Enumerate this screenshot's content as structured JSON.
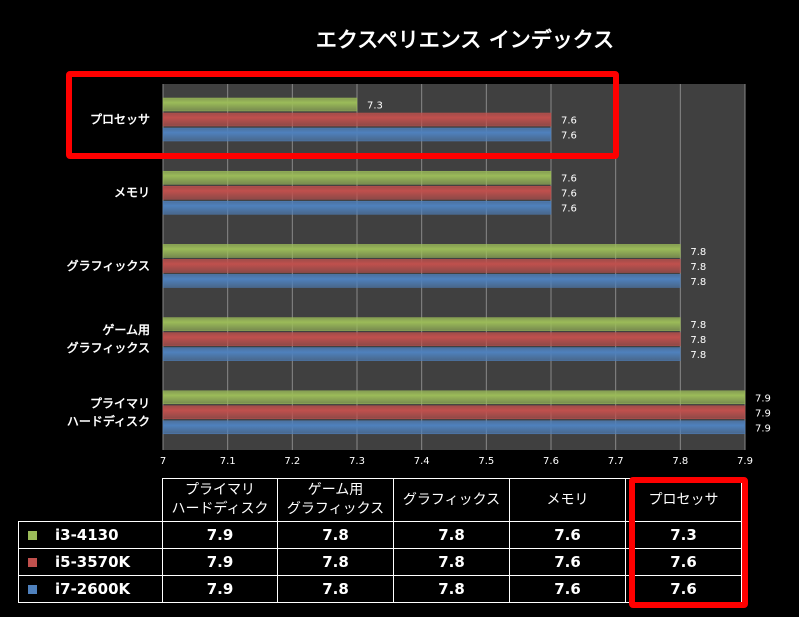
{
  "chart_data": {
    "type": "bar",
    "orientation": "horizontal",
    "title": "エクスペリエンス インデックス",
    "categories": [
      "プロセッサ",
      "メモリ",
      "グラフィックス",
      "ゲーム用\nグラフィックス",
      "プライマリ\nハードディスク"
    ],
    "series": [
      {
        "name": "i3-4130",
        "color": "#9bbb59",
        "values": [
          7.3,
          7.6,
          7.8,
          7.8,
          7.9
        ]
      },
      {
        "name": "i5-3570K",
        "color": "#c0504d",
        "values": [
          7.6,
          7.6,
          7.8,
          7.8,
          7.9
        ]
      },
      {
        "name": "i7-2600K",
        "color": "#4f81bd",
        "values": [
          7.6,
          7.6,
          7.8,
          7.8,
          7.9
        ]
      }
    ],
    "xlim": [
      7,
      7.9
    ],
    "xticks": [
      "7",
      "7.1",
      "7.2",
      "7.3",
      "7.4",
      "7.5",
      "7.6",
      "7.7",
      "7.8",
      "7.9"
    ],
    "grid": true,
    "plot_background": "#404040"
  },
  "table": {
    "headers": [
      "プライマリ\nハードディスク",
      "ゲーム用\nグラフィックス",
      "グラフィックス",
      "メモリ",
      "プロセッサ"
    ],
    "rows": [
      {
        "name": "i3-4130",
        "values": [
          "7.9",
          "7.8",
          "7.8",
          "7.6",
          "7.3"
        ]
      },
      {
        "name": "i5-3570K",
        "values": [
          "7.9",
          "7.8",
          "7.8",
          "7.6",
          "7.6"
        ]
      },
      {
        "name": "i7-2600K",
        "values": [
          "7.9",
          "7.8",
          "7.8",
          "7.6",
          "7.6"
        ]
      }
    ]
  },
  "highlight_color": "#ff0000"
}
